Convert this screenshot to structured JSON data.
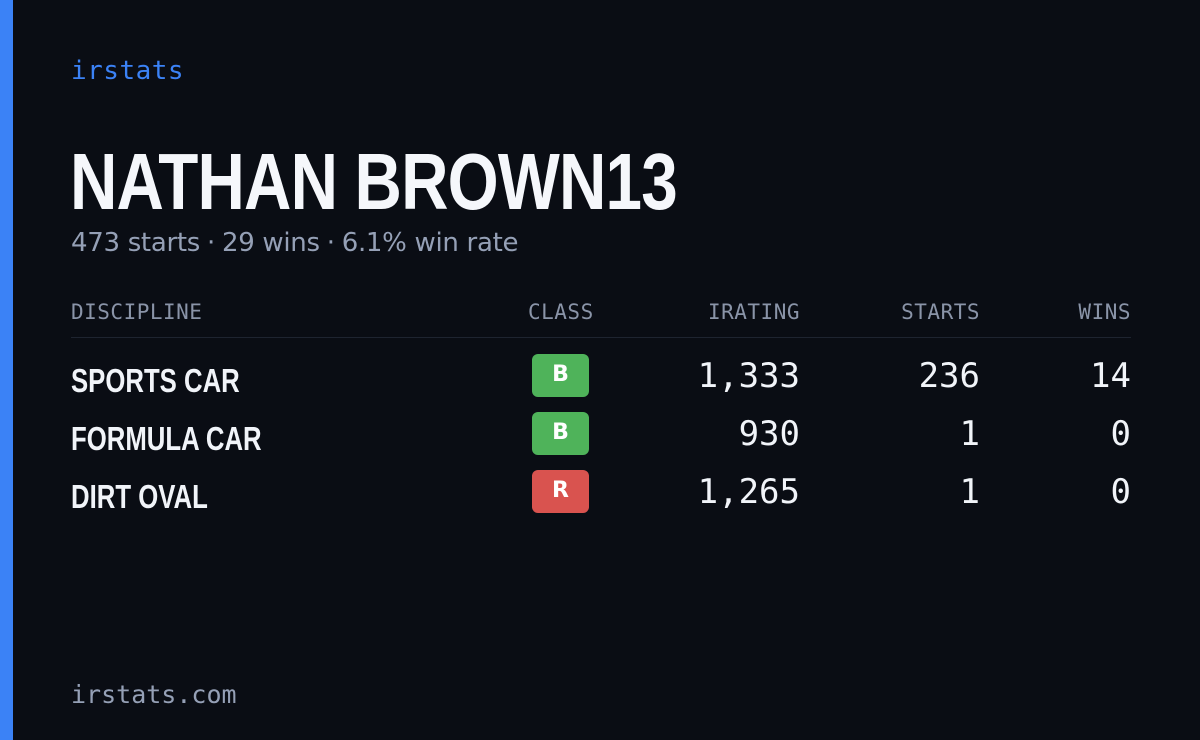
{
  "brand": "irstats",
  "driver": {
    "name": "NATHAN BROWN13"
  },
  "summary": {
    "starts": "473 starts",
    "wins": "29 wins",
    "win_rate": "6.1% win rate",
    "separator": "·"
  },
  "table": {
    "headers": {
      "discipline": "DISCIPLINE",
      "class": "CLASS",
      "irating": "IRATING",
      "starts": "STARTS",
      "wins": "WINS"
    },
    "rows": [
      {
        "discipline": "SPORTS CAR",
        "class": "B",
        "class_color": "#4fb35a",
        "irating": "1,333",
        "starts": "236",
        "wins": "14"
      },
      {
        "discipline": "FORMULA CAR",
        "class": "B",
        "class_color": "#4fb35a",
        "irating": "930",
        "starts": "1",
        "wins": "0"
      },
      {
        "discipline": "DIRT OVAL",
        "class": "R",
        "class_color": "#d9534f",
        "irating": "1,265",
        "starts": "1",
        "wins": "0"
      }
    ]
  },
  "footer": {
    "domain": "irstats.com"
  },
  "colors": {
    "background": "#0a0d14",
    "accent": "#3b82f6",
    "muted_text": "#95a0b6",
    "class_b": "#4fb35a",
    "class_r": "#d9534f"
  }
}
